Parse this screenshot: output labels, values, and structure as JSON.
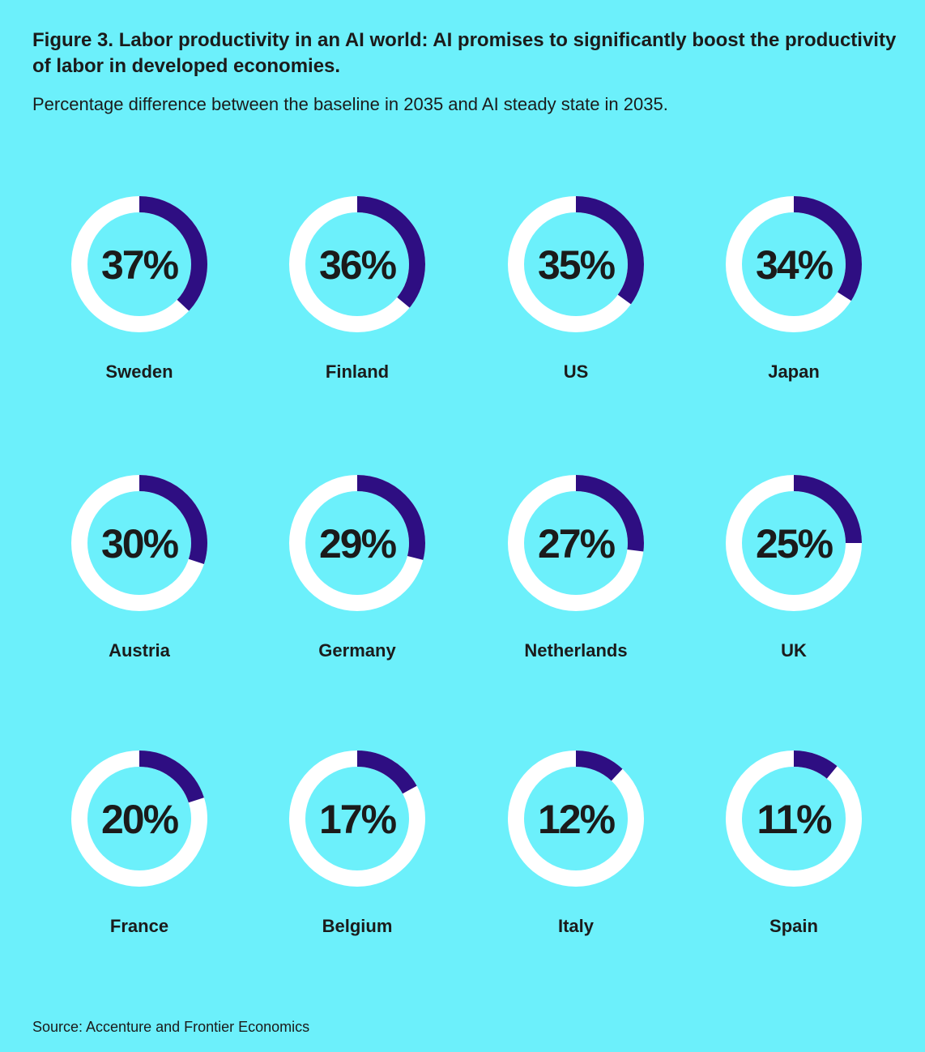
{
  "title": "Figure 3. Labor productivity in an AI world: AI promises to significantly boost the productivity of labor in developed economies.",
  "subtitle": "Percentage difference between the baseline in 2035 and AI steady state in 2035.",
  "source": "Source: Accenture and Frontier Economics",
  "colors": {
    "background": "#6cf0fb",
    "fill": "#2e0e82",
    "track": "#ffffff"
  },
  "chart_data": {
    "type": "donut",
    "unit": "%",
    "categories": [
      "Sweden",
      "Finland",
      "US",
      "Japan",
      "Austria",
      "Germany",
      "Netherlands",
      "UK",
      "France",
      "Belgium",
      "Italy",
      "Spain"
    ],
    "values": [
      37,
      36,
      35,
      34,
      30,
      29,
      27,
      25,
      20,
      17,
      12,
      11
    ],
    "labels": [
      "37%",
      "36%",
      "35%",
      "34%",
      "30%",
      "29%",
      "27%",
      "25%",
      "20%",
      "17%",
      "12%",
      "11%"
    ]
  }
}
